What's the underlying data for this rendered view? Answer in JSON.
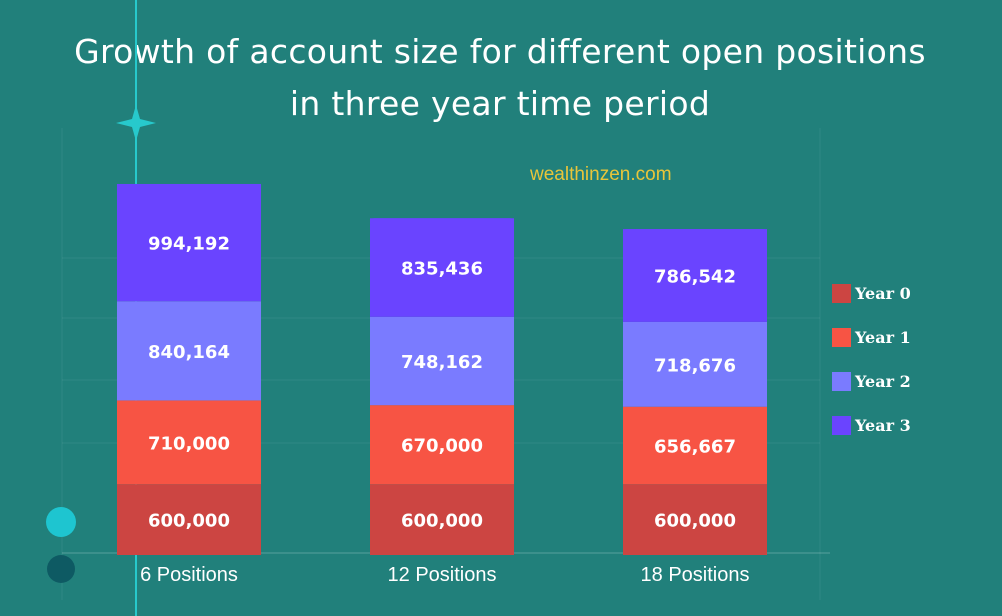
{
  "chart_data": {
    "type": "bar",
    "stacked": true,
    "title": "Growth of account size for different open positions in three year time period",
    "watermark": "wealthinzen.com",
    "categories": [
      "6 Positions",
      "12 Positions",
      "18 Positions"
    ],
    "series": [
      {
        "name": "Year 0",
        "color": "#cc4542",
        "values": [
          600000,
          600000,
          600000
        ],
        "labels": [
          "600,000",
          "600,000",
          "600,000"
        ]
      },
      {
        "name": "Year 1",
        "color": "#f75444",
        "values": [
          710000,
          670000,
          656667
        ],
        "labels": [
          "710,000",
          "670,000",
          "656,667"
        ]
      },
      {
        "name": "Year 2",
        "color": "#7a7bff",
        "values": [
          840164,
          748162,
          718676
        ],
        "labels": [
          "840,164",
          "748,162",
          "718,676"
        ]
      },
      {
        "name": "Year 3",
        "color": "#6a44ff",
        "values": [
          994192,
          835436,
          786542
        ],
        "labels": [
          "994,192",
          "835,436",
          "786,542"
        ]
      }
    ],
    "legend": {
      "position": "right"
    },
    "grid": true,
    "background": "#21807b"
  }
}
